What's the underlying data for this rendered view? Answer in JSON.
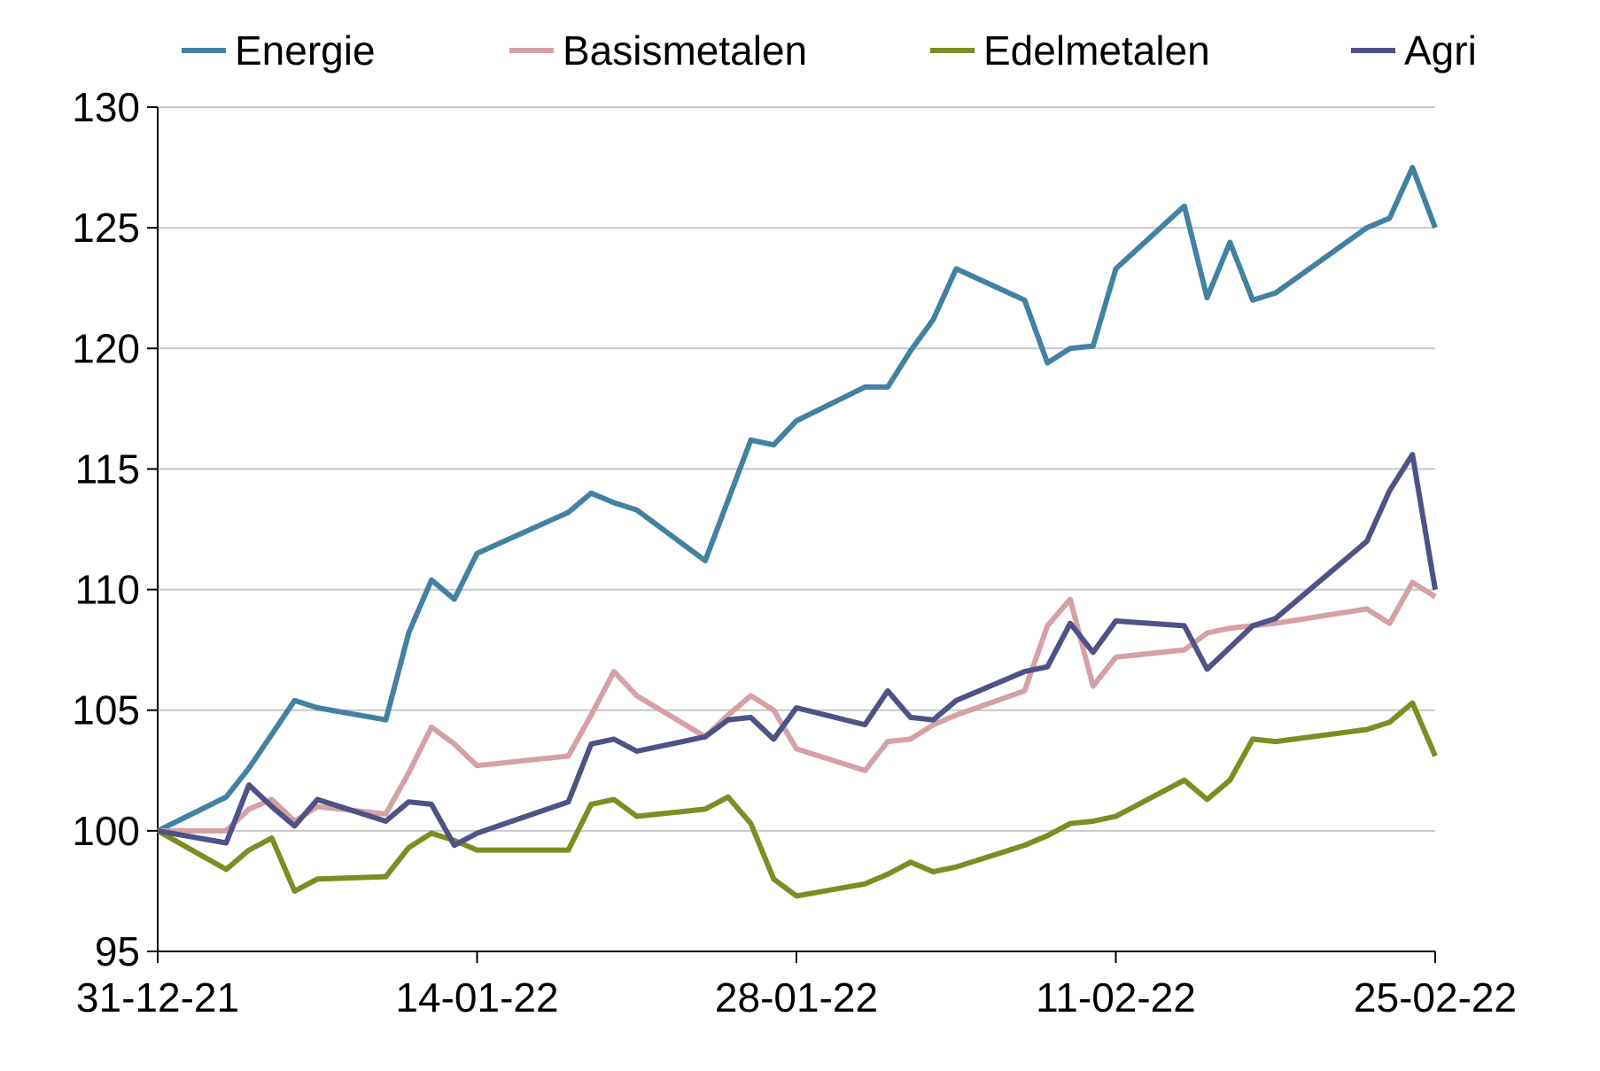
{
  "chart_data": {
    "type": "line",
    "title": "",
    "xlabel": "",
    "ylabel": "",
    "ylim": [
      95,
      130
    ],
    "yticks": [
      "95",
      "100",
      "105",
      "110",
      "115",
      "120",
      "125",
      "130"
    ],
    "x_range": [
      "2021-12-31",
      "2022-02-25"
    ],
    "xticks": [
      {
        "date": "2021-12-31",
        "label": "31-12-21"
      },
      {
        "date": "2022-01-14",
        "label": "14-01-22"
      },
      {
        "date": "2022-01-28",
        "label": "28-01-22"
      },
      {
        "date": "2022-02-11",
        "label": "11-02-22"
      },
      {
        "date": "2022-02-25",
        "label": "25-02-22"
      }
    ],
    "grid": "horizontal",
    "legend": "top",
    "dates": [
      "2021-12-31",
      "2022-01-03",
      "2022-01-04",
      "2022-01-05",
      "2022-01-06",
      "2022-01-07",
      "2022-01-10",
      "2022-01-11",
      "2022-01-12",
      "2022-01-13",
      "2022-01-14",
      "2022-01-18",
      "2022-01-19",
      "2022-01-20",
      "2022-01-21",
      "2022-01-24",
      "2022-01-25",
      "2022-01-26",
      "2022-01-27",
      "2022-01-28",
      "2022-01-31",
      "2022-02-01",
      "2022-02-02",
      "2022-02-03",
      "2022-02-04",
      "2022-02-07",
      "2022-02-08",
      "2022-02-09",
      "2022-02-10",
      "2022-02-11",
      "2022-02-14",
      "2022-02-15",
      "2022-02-16",
      "2022-02-17",
      "2022-02-18",
      "2022-02-22",
      "2022-02-23",
      "2022-02-24",
      "2022-02-25"
    ],
    "series": [
      {
        "name": "Energie",
        "color": "#4381A3",
        "values": [
          100,
          101.4,
          102.6,
          104,
          105.4,
          105.1,
          104.6,
          108.2,
          110.4,
          109.6,
          111.5,
          113.2,
          114,
          113.6,
          113.3,
          111.2,
          113.7,
          116.2,
          116,
          117,
          118.4,
          118.4,
          119.9,
          121.2,
          123.3,
          122,
          119.4,
          120,
          120.1,
          123.3,
          125.9,
          122.1,
          124.4,
          122,
          122.3,
          125,
          125.4,
          127.5,
          125
        ]
      },
      {
        "name": "Basismetalen",
        "color": "#D5A0A6",
        "values": [
          100,
          100,
          100.9,
          101.3,
          100.4,
          101,
          100.7,
          102.4,
          104.3,
          103.6,
          102.7,
          103.1,
          104.8,
          106.6,
          105.6,
          103.9,
          104.8,
          105.6,
          105,
          103.4,
          102.5,
          103.7,
          103.8,
          104.4,
          104.8,
          105.8,
          108.5,
          109.6,
          106,
          107.2,
          107.5,
          108.2,
          108.4,
          108.5,
          108.6,
          109.2,
          108.6,
          110.3,
          109.7
        ]
      },
      {
        "name": "Edelmetalen",
        "color": "#7F8C23",
        "values": [
          100,
          98.4,
          99.2,
          99.7,
          97.5,
          98,
          98.1,
          99.3,
          99.9,
          99.6,
          99.2,
          99.2,
          101.1,
          101.3,
          100.6,
          100.9,
          101.4,
          100.3,
          98,
          97.3,
          97.8,
          98.2,
          98.7,
          98.3,
          98.5,
          99.4,
          99.8,
          100.3,
          100.4,
          100.6,
          102.1,
          101.3,
          102.1,
          103.8,
          103.7,
          104.2,
          104.5,
          105.3,
          103.1
        ]
      },
      {
        "name": "Agri",
        "color": "#4F5287",
        "values": [
          100,
          99.5,
          101.9,
          101,
          100.2,
          101.3,
          100.4,
          101.2,
          101.1,
          99.4,
          99.9,
          101.2,
          103.6,
          103.8,
          103.3,
          103.9,
          104.6,
          104.7,
          103.8,
          105.1,
          104.4,
          105.8,
          104.7,
          104.6,
          105.4,
          106.6,
          106.8,
          108.6,
          107.4,
          108.7,
          108.5,
          106.7,
          107.6,
          108.5,
          108.8,
          112,
          114.1,
          115.6,
          110
        ]
      }
    ]
  }
}
